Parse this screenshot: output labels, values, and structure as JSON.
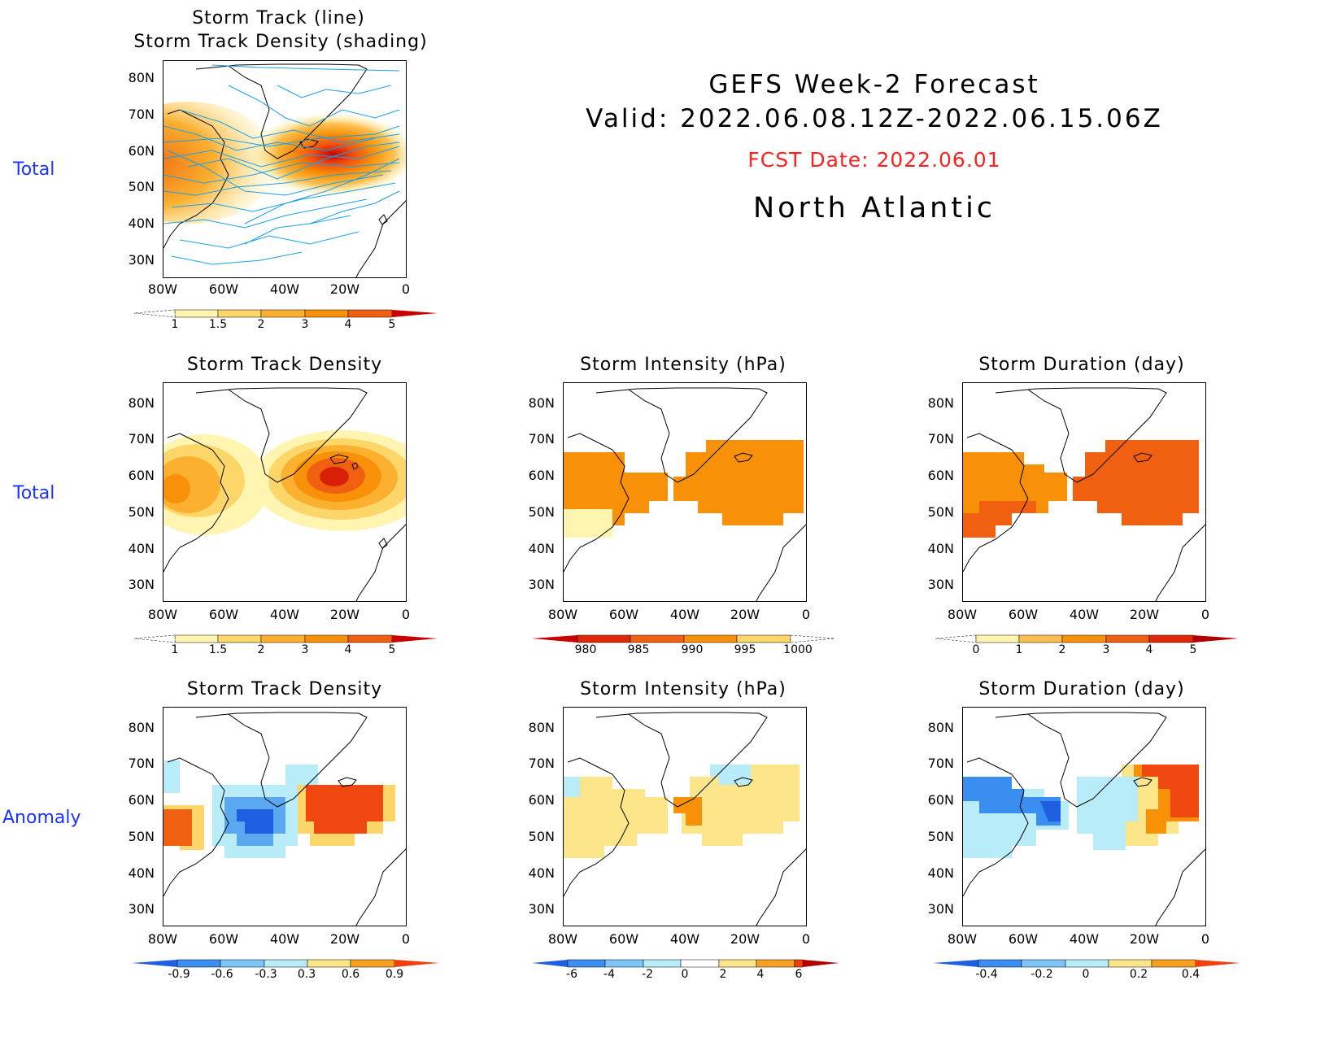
{
  "header": {
    "line1": "GEFS Week-2 Forecast",
    "line2": "Valid: 2022.06.08.12Z-2022.06.15.06Z",
    "fcst": "FCST Date: 2022.06.01",
    "region": "North Atlantic",
    "fcst_color": "#ff2020"
  },
  "row_labels": {
    "row1": "Total",
    "row2": "Total",
    "row3": "Anomaly"
  },
  "titles": {
    "p1_line1": "Storm Track (line)",
    "p1_line2": "Storm Track Density (shading)",
    "density": "Storm Track Density",
    "intensity": "Storm Intensity (hPa)",
    "duration": "Storm Duration (day)"
  },
  "axes": {
    "lat_labels": [
      "80N",
      "70N",
      "60N",
      "50N",
      "40N",
      "30N"
    ],
    "lon_labels": [
      "80W",
      "60W",
      "40W",
      "20W",
      "0"
    ]
  },
  "colorbars": {
    "density_total": [
      "1",
      "1.5",
      "2",
      "3",
      "4",
      "5"
    ],
    "intensity_total": [
      "980",
      "985",
      "990",
      "995",
      "1000"
    ],
    "duration_total": [
      "0",
      "1",
      "2",
      "3",
      "4",
      "5"
    ],
    "density_anom": [
      "-0.9",
      "-0.6",
      "-0.3",
      "0.3",
      "0.6",
      "0.9"
    ],
    "intensity_anom": [
      "-6",
      "-4",
      "-2",
      "0",
      "2",
      "4",
      "6"
    ],
    "duration_anom": [
      "-0.4",
      "-0.2",
      "0",
      "0.2",
      "0.4"
    ]
  },
  "colors": {
    "track_line": "#1aa0e8",
    "warm_scale": [
      "#fff5b0",
      "#fdd66a",
      "#fbb030",
      "#f89008",
      "#f06010",
      "#e02808",
      "#b00000"
    ],
    "cool_scale": [
      "#1e5ee0",
      "#3a8ef0",
      "#7cc4f8",
      "#b8ecf8"
    ]
  }
}
